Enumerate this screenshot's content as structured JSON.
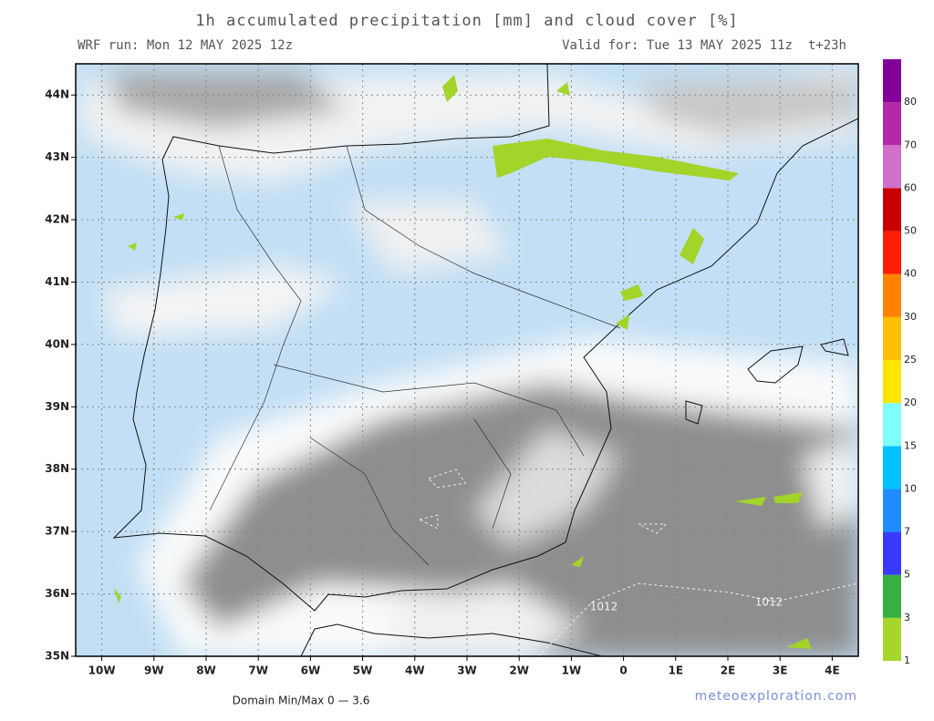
{
  "header": {
    "title": "1h accumulated precipitation [mm] and cloud cover [%]",
    "run": "WRF run: Mon 12 MAY 2025 12z",
    "valid": "Valid for: Tue 13 MAY 2025 11z  t+23h"
  },
  "map": {
    "xlim": [
      -10.5,
      4.5
    ],
    "ylim": [
      35,
      44.5
    ],
    "xticks": [
      {
        "value": -10,
        "label": "10W"
      },
      {
        "value": -9,
        "label": "9W"
      },
      {
        "value": -8,
        "label": "8W"
      },
      {
        "value": -7,
        "label": "7W"
      },
      {
        "value": -6,
        "label": "6W"
      },
      {
        "value": -5,
        "label": "5W"
      },
      {
        "value": -4,
        "label": "4W"
      },
      {
        "value": -3,
        "label": "3W"
      },
      {
        "value": -2,
        "label": "2W"
      },
      {
        "value": -1,
        "label": "1W"
      },
      0,
      {
        "value": 1,
        "label": "1E"
      },
      {
        "value": 2,
        "label": "2E"
      },
      {
        "value": 3,
        "label": "3E"
      },
      {
        "value": 4,
        "label": "4E"
      }
    ],
    "yticks": [
      {
        "value": 35,
        "label": "35N"
      },
      {
        "value": 36,
        "label": "36N"
      },
      {
        "value": 37,
        "label": "37N"
      },
      {
        "value": 38,
        "label": "38N"
      },
      {
        "value": 39,
        "label": "39N"
      },
      {
        "value": 40,
        "label": "40N"
      },
      {
        "value": 41,
        "label": "41N"
      },
      {
        "value": 42,
        "label": "42N"
      },
      {
        "value": 43,
        "label": "43N"
      },
      {
        "value": 44,
        "label": "44N"
      }
    ],
    "isobar_labels": [
      "1012",
      "1012"
    ]
  },
  "colorbar": {
    "levels": [
      1,
      3,
      5,
      7,
      10,
      15,
      20,
      25,
      30,
      40,
      50,
      60,
      70,
      80
    ],
    "colors": [
      "#a6d62a",
      "#38b040",
      "#3a3aff",
      "#1e8cff",
      "#00c0ff",
      "#80ffff",
      "#ffe400",
      "#ffbe00",
      "#ff8200",
      "#ff1e00",
      "#c80000",
      "#d070c8",
      "#b428a8",
      "#82009a"
    ]
  },
  "footer": {
    "minmax": "Domain Min/Max 0 — 3.6",
    "site": "meteoexploration.com"
  }
}
